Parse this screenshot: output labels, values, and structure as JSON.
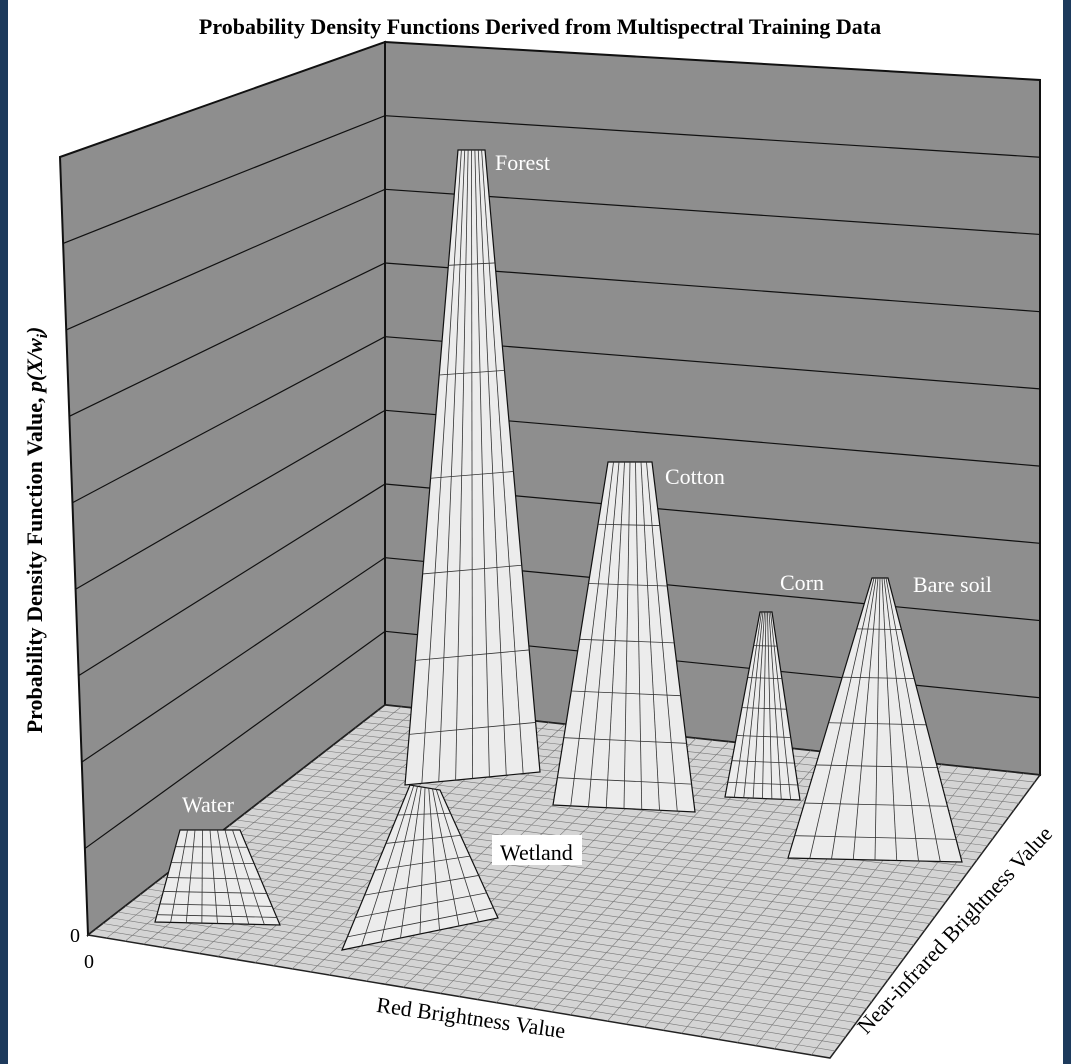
{
  "title": "Probability Density Functions Derived from Multispectral Training Data",
  "z_axis": {
    "label": "Probability Density Function Value, ",
    "label_math": "p(X/w",
    "label_sub": "i",
    "label_end": ")",
    "tick": "0"
  },
  "x_axis": {
    "label": "Red Brightness Value",
    "tick": "0"
  },
  "y_axis": {
    "label": "Near-infrared Brightness Value"
  },
  "peaks": [
    {
      "label": "Forest"
    },
    {
      "label": "Cotton"
    },
    {
      "label": "Corn"
    },
    {
      "label": "Bare soil"
    },
    {
      "label": "Water"
    },
    {
      "label": "Wetland"
    }
  ]
}
